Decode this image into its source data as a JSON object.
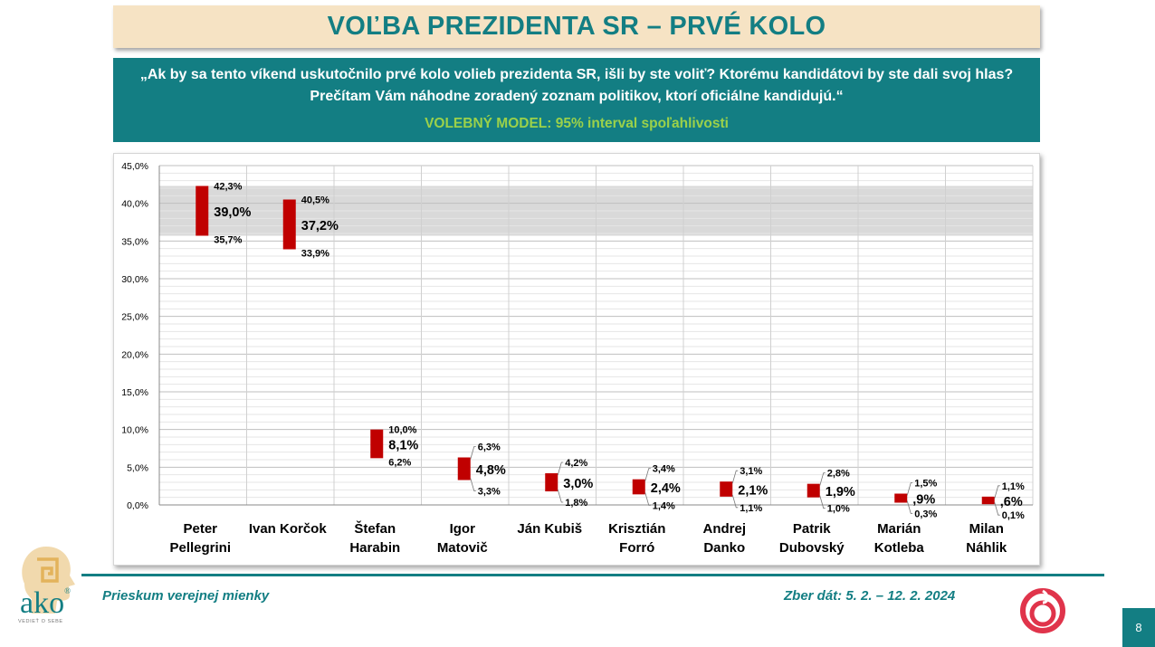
{
  "title": "VOĽBA PREZIDENTA SR – PRVÉ KOLO",
  "question_line1": "„Ak by sa tento víkend uskutočnilo prvé kolo volieb prezidenta SR, išli by ste voliť? Ktorému kandidátovi by ste dali svoj hlas?",
  "question_line2": "Prečítam Vám náhodne zoradený zoznam politikov, ktorí oficiálne kandidujú.“",
  "model_label": "VOLEBNÝ MODEL:  95% interval spoľahlivosti",
  "footer": {
    "left": "Prieskum verejnej mienky",
    "right": "Zber dát: 5. 2. – 12. 2. 2024",
    "page": "8"
  },
  "logo": {
    "text": "ako",
    "sub": "VEDIEŤ O SEBE",
    "reg": "®"
  },
  "colors": {
    "accent": "#137e83",
    "bar": "#c00000",
    "band": "#d9d9d9",
    "model_text": "#9bd14a",
    "title_bg": "#f6e3c4"
  },
  "chart_data": {
    "type": "bar",
    "subtype": "confidence-interval",
    "categories": [
      [
        "Peter",
        "Pellegrini"
      ],
      [
        "Ivan Korčok"
      ],
      [
        "Štefan",
        "Harabin"
      ],
      [
        "Igor",
        "Matovič"
      ],
      [
        "Ján Kubiš"
      ],
      [
        "Krisztián",
        "Forró"
      ],
      [
        "Andrej",
        "Danko"
      ],
      [
        "Patrik",
        "Dubovský"
      ],
      [
        "Marián",
        "Kotleba"
      ],
      [
        "Milan",
        "Náhlik"
      ]
    ],
    "values": [
      39.0,
      37.2,
      8.1,
      4.8,
      3.0,
      2.4,
      2.1,
      1.9,
      0.9,
      0.6
    ],
    "upper": [
      42.3,
      40.5,
      10.0,
      6.3,
      4.2,
      3.4,
      3.1,
      2.8,
      1.5,
      1.1
    ],
    "lower": [
      35.7,
      33.9,
      6.2,
      3.3,
      1.8,
      1.4,
      1.1,
      1.0,
      0.3,
      0.1
    ],
    "value_labels": [
      "39,0%",
      "37,2%",
      "8,1%",
      "4,8%",
      "3,0%",
      "2,4%",
      "2,1%",
      "1,9%",
      ",9%",
      ",6%"
    ],
    "upper_labels": [
      "42,3%",
      "40,5%",
      "10,0%",
      "6,3%",
      "4,2%",
      "3,4%",
      "3,1%",
      "2,8%",
      "1,5%",
      "1,1%"
    ],
    "lower_labels": [
      "35,7%",
      "33,9%",
      "6,2%",
      "3,3%",
      "1,8%",
      "1,4%",
      "1,1%",
      "1,0%",
      "0,3%",
      "0,1%"
    ],
    "band": [
      35.7,
      42.3
    ],
    "yticks": [
      "0,0%",
      "5,0%",
      "10,0%",
      "15,0%",
      "20,0%",
      "25,0%",
      "30,0%",
      "35,0%",
      "40,0%",
      "45,0%"
    ],
    "ylim": [
      0,
      45
    ],
    "grid": true,
    "legend": "none",
    "xlabel": "",
    "ylabel": ""
  }
}
